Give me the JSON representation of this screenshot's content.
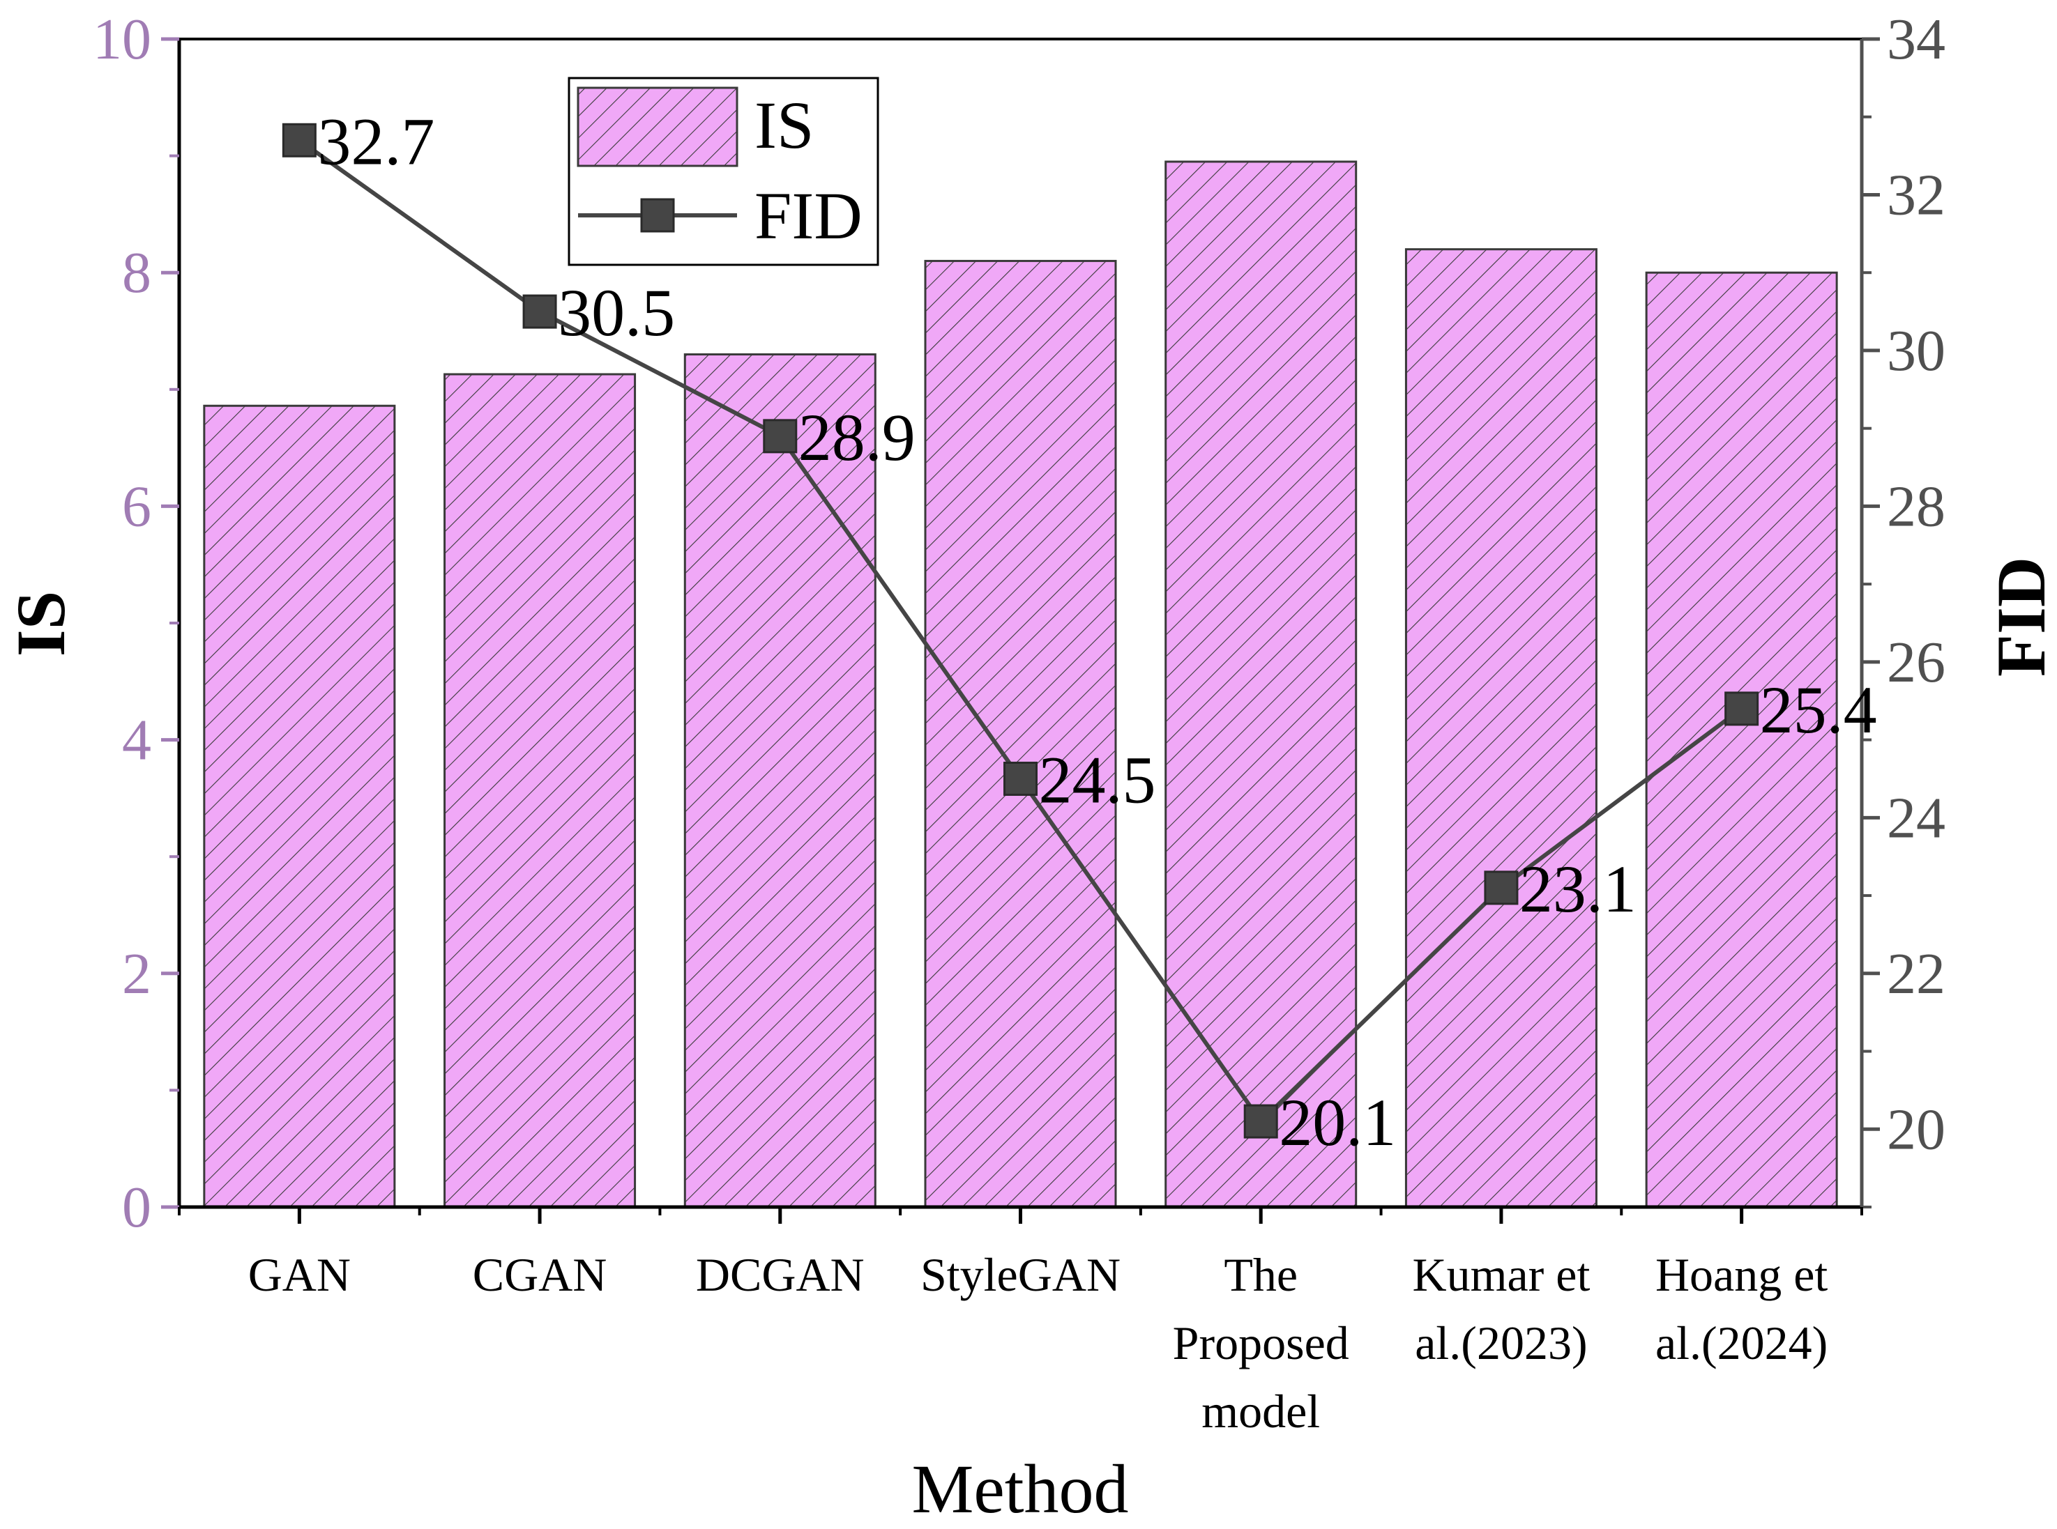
{
  "chart_data": {
    "type": "bar",
    "categories": [
      "GAN",
      "CGAN",
      "DCGAN",
      "StyleGAN",
      "The Proposed model",
      "Kumar et al.(2023)",
      "Hoang et al.(2024)"
    ],
    "category_lines": [
      [
        "GAN"
      ],
      [
        "CGAN"
      ],
      [
        "DCGAN"
      ],
      [
        "StyleGAN"
      ],
      [
        "The",
        "Proposed",
        "model"
      ],
      [
        "Kumar et",
        "al.(2023)"
      ],
      [
        "Hoang et",
        "al.(2024)"
      ]
    ],
    "series": [
      {
        "name": "IS",
        "type": "bar",
        "axis": "left",
        "values": [
          6.86,
          7.13,
          7.3,
          8.1,
          8.95,
          8.2,
          8.0
        ]
      },
      {
        "name": "FID",
        "type": "line",
        "axis": "right",
        "values": [
          32.7,
          30.5,
          28.9,
          24.5,
          20.1,
          23.1,
          25.4
        ]
      }
    ],
    "point_labels": [
      "32.7",
      "30.5",
      "28.9",
      "24.5",
      "20.1",
      "23.1",
      "25.4"
    ],
    "xlabel": "Method",
    "ylabel_left": "IS",
    "ylabel_right": "FID",
    "ylim_left": [
      0,
      10
    ],
    "ylim_right": [
      19,
      34
    ],
    "yticks_left": [
      0,
      2,
      4,
      6,
      8,
      10
    ],
    "yticks_right": [
      20,
      22,
      24,
      26,
      28,
      30,
      32,
      34
    ],
    "ytick_labels_left": [
      "0",
      "2",
      "4",
      "6",
      "8",
      "10"
    ],
    "ytick_labels_right": [
      "20",
      "22",
      "24",
      "26",
      "28",
      "30",
      "32",
      "34"
    ],
    "legend": {
      "position": "top-left",
      "entries": [
        "IS",
        "FID"
      ]
    },
    "colors": {
      "bar_fill": "#f0a8f7",
      "bar_hatch": "#3a3a3a",
      "bar_edge": "#3a3a3a",
      "line": "#454545",
      "marker": "#454545",
      "left_axis": "#a07cb4",
      "right_axis": "#505050",
      "text": "#000000"
    }
  }
}
